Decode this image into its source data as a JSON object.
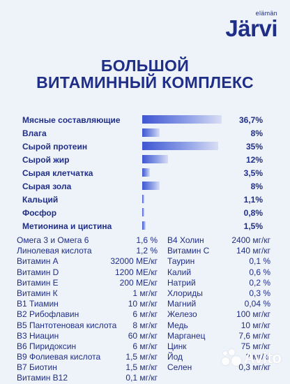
{
  "brand": {
    "small": "elämän",
    "main": "Järvi"
  },
  "title": {
    "line1": "БОЛЬШОЙ",
    "line2": "ВИТАМИННЫЙ КОМПЛЕКС"
  },
  "composition": [
    {
      "label": "Мясные составляющие",
      "value": "36,7%",
      "percent": 36.7
    },
    {
      "label": "Влага",
      "value": "8%",
      "percent": 8
    },
    {
      "label": "Сырой протеин",
      "value": "35%",
      "percent": 35
    },
    {
      "label": "Сырой жир",
      "value": "12%",
      "percent": 12
    },
    {
      "label": "Сырая клетчатка",
      "value": "3,5%",
      "percent": 3.5
    },
    {
      "label": "Сырая зола",
      "value": "8%",
      "percent": 8
    },
    {
      "label": "Кальций",
      "value": "1,1%",
      "percent": 1.1
    },
    {
      "label": "Фосфор",
      "value": "0,8%",
      "percent": 0.8
    },
    {
      "label": "Метионина и цистина",
      "value": "1,5%",
      "percent": 1.5
    }
  ],
  "nutrients_left": [
    {
      "label": "Омега 3 и Омега 6",
      "value": "1,6 %"
    },
    {
      "label": "Линолевая кислота",
      "value": "1,2 %"
    },
    {
      "label": "Витамин А",
      "value": "32000 МЕ/кг"
    },
    {
      "label": "Витамин D",
      "value": "1200 МЕ/кг"
    },
    {
      "label": "Витамин Е",
      "value": "200 МЕ/кг"
    },
    {
      "label": "Витамин К",
      "value": "1 мг/кг"
    },
    {
      "label": "В1 Тиамин",
      "value": "10 мг/кг"
    },
    {
      "label": "В2 Рибофлавин",
      "value": "6 мг/кг"
    },
    {
      "label": "В5 Пантотеновая кислота",
      "value": "8 мг/кг"
    },
    {
      "label": "В3 Ниацин",
      "value": "60 мг/кг"
    },
    {
      "label": "В6 Пиридоксин",
      "value": "6 мг/кг"
    },
    {
      "label": "В9 Фолиевая кислота",
      "value": "1,5 мг/кг"
    },
    {
      "label": "В7 Биотин",
      "value": "1,5 мг/кг"
    },
    {
      "label": "Витамин В12",
      "value": "0,1 мг/кг"
    }
  ],
  "nutrients_right": [
    {
      "label": "В4 Холин",
      "value": "2400 мг/кг"
    },
    {
      "label": "Витамин С",
      "value": "140 мг/кг"
    },
    {
      "label": "Таурин",
      "value": "0,1 %"
    },
    {
      "label": "Калий",
      "value": "0,6 %"
    },
    {
      "label": "Натрий",
      "value": "0,2 %"
    },
    {
      "label": "Хлориды",
      "value": "0,3 %"
    },
    {
      "label": "Магний",
      "value": "0,04 %"
    },
    {
      "label": "Железо",
      "value": "100 мг/кг"
    },
    {
      "label": "Медь",
      "value": "10 мг/кг"
    },
    {
      "label": "Марганец",
      "value": "7,6 мг/кг"
    },
    {
      "label": "Цинк",
      "value": "75 мг/кг"
    },
    {
      "label": "Йод",
      "value": "2 мг/кг"
    },
    {
      "label": "Селен",
      "value": "0,3 мг/кг"
    }
  ],
  "watermark": {
    "text": "Avito"
  },
  "colors": {
    "primary": "#1f2e87",
    "background": "#eef2f9",
    "bar_start": "#3f56d2",
    "bar_end": "#d9def4"
  }
}
